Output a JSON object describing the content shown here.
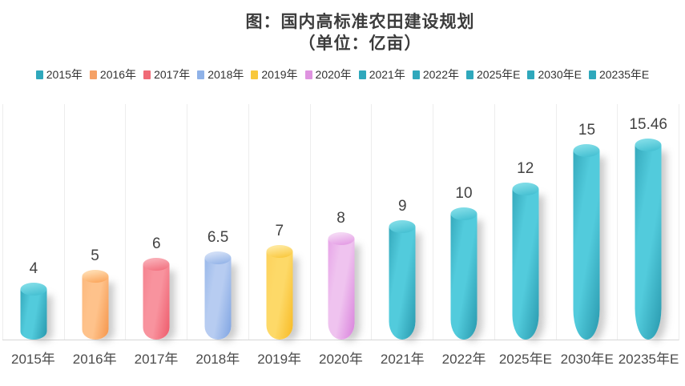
{
  "title": {
    "line1": "图：国内高标准农田建设规划",
    "line2": "（单位：亿亩）"
  },
  "legend": [
    {
      "label": "2015年",
      "color": "#2fa8bc"
    },
    {
      "label": "2016年",
      "color": "#f5a166"
    },
    {
      "label": "2017年",
      "color": "#f06a76"
    },
    {
      "label": "2018年",
      "color": "#8fb2e8"
    },
    {
      "label": "2019年",
      "color": "#f8c83c"
    },
    {
      "label": "2020年",
      "color": "#df93e0"
    },
    {
      "label": "2021年",
      "color": "#2fa8bc"
    },
    {
      "label": "2022年",
      "color": "#2fa8bc"
    },
    {
      "label": "2025年E",
      "color": "#2fa8bc"
    },
    {
      "label": "2030年E",
      "color": "#2fa8bc"
    },
    {
      "label": "20235年E",
      "color": "#2fa8bc"
    }
  ],
  "chart_data": {
    "type": "bar",
    "title": "图：国内高标准农田建设规划",
    "subtitle": "（单位：亿亩）",
    "categories": [
      "2015年",
      "2016年",
      "2017年",
      "2018年",
      "2019年",
      "2020年",
      "2021年",
      "2022年",
      "2025年E",
      "2030年E",
      "20235年E"
    ],
    "values": [
      4,
      5,
      6,
      6.5,
      7,
      8,
      9,
      10,
      12,
      15,
      15.46
    ],
    "value_labels": [
      "4",
      "5",
      "6",
      "6.5",
      "7",
      "8",
      "9",
      "10",
      "12",
      "15",
      "15.46"
    ],
    "xlabel": "",
    "ylabel": "亿亩",
    "ylim": [
      0,
      17
    ],
    "grid": "vertical-only",
    "legend_position": "top",
    "bar_shape": "cylinder-3d",
    "bar_styles": [
      {
        "edgeL": "#35a9bc",
        "mid": "#52cbdc",
        "edgeR": "#2898ad",
        "capTop": "#7ddbe6",
        "capBot": "#45c0d2"
      },
      {
        "edgeL": "#fcb97e",
        "mid": "#fec28b",
        "edgeR": "#f5954b",
        "capTop": "#ffd9ac",
        "capBot": "#fba75e"
      },
      {
        "edgeL": "#f5838f",
        "mid": "#f8939e",
        "edgeR": "#ee5a6a",
        "capTop": "#f9abb4",
        "capBot": "#f27381"
      },
      {
        "edgeL": "#9ab9ea",
        "mid": "#b7ccf1",
        "edgeR": "#7fa4e2",
        "capTop": "#cfddf6",
        "capBot": "#94b4e8"
      },
      {
        "edgeL": "#fdd25c",
        "mid": "#fdd968",
        "edgeR": "#f8ba24",
        "capTop": "#fee79a",
        "capBot": "#fac93f"
      },
      {
        "edgeL": "#e7a5e8",
        "mid": "#efc3ef",
        "edgeR": "#d981dc",
        "capTop": "#f4d6f4",
        "capBot": "#e49ce5"
      },
      {
        "edgeL": "#35a9bc",
        "mid": "#52cbdc",
        "edgeR": "#2898ad",
        "capTop": "#7ddbe6",
        "capBot": "#45c0d2"
      },
      {
        "edgeL": "#35a9bc",
        "mid": "#52cbdc",
        "edgeR": "#2898ad",
        "capTop": "#7ddbe6",
        "capBot": "#45c0d2"
      },
      {
        "edgeL": "#35a9bc",
        "mid": "#52cbdc",
        "edgeR": "#2898ad",
        "capTop": "#7ddbe6",
        "capBot": "#45c0d2"
      },
      {
        "edgeL": "#35a9bc",
        "mid": "#52cbdc",
        "edgeR": "#2898ad",
        "capTop": "#7ddbe6",
        "capBot": "#45c0d2"
      },
      {
        "edgeL": "#35a9bc",
        "mid": "#52cbdc",
        "edgeR": "#2898ad",
        "capTop": "#7ddbe6",
        "capBot": "#45c0d2"
      }
    ],
    "colors": {
      "value_label_text": "#424242",
      "axis_label_text": "#4b4b4b",
      "gridline": "#ededed",
      "baseline": "#d7d7d7",
      "background": "#ffffff"
    }
  }
}
